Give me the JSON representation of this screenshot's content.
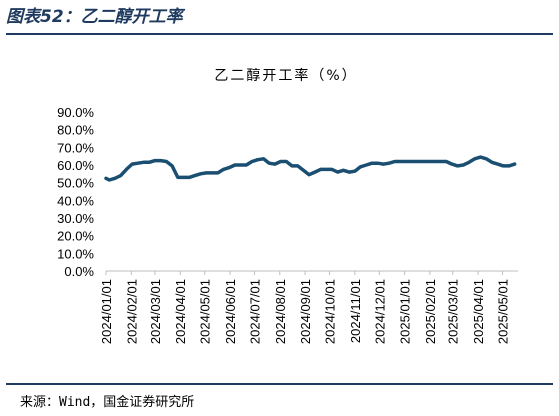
{
  "figure_title": "图表52：乙二醇开工率",
  "source": "来源：Wind，国金证券研究所",
  "colors": {
    "line": "#1b4f72",
    "rule": "#1f3a5f",
    "axis": "#bfbfbf"
  },
  "chart_data": {
    "type": "line",
    "title": "乙二醇开工率（%）",
    "ylim": [
      0,
      90
    ],
    "yticks": [
      "90.0%",
      "80.0%",
      "70.0%",
      "60.0%",
      "50.0%",
      "40.0%",
      "30.0%",
      "20.0%",
      "10.0%",
      "0.0%"
    ],
    "ytick_values": [
      90,
      80,
      70,
      60,
      50,
      40,
      30,
      20,
      10,
      0
    ],
    "xtick_labels": [
      "2024/01/01",
      "2024/02/01",
      "2024/03/01",
      "2024/04/01",
      "2024/05/01",
      "2024/06/01",
      "2024/07/01",
      "2024/08/01",
      "2024/09/01",
      "2024/10/01",
      "2024/11/01",
      "2024/12/01",
      "2025/01/01",
      "2025/02/01",
      "2025/03/01",
      "2025/04/01",
      "2025/05/01"
    ],
    "xlim": [
      "2024-01-01",
      "2025-05-20"
    ],
    "grid": false,
    "series": [
      {
        "x": [
          "2024-01-01",
          "2024-01-05",
          "2024-01-12",
          "2024-01-19",
          "2024-01-26",
          "2024-02-02",
          "2024-02-09",
          "2024-02-16",
          "2024-02-23",
          "2024-03-01",
          "2024-03-08",
          "2024-03-15",
          "2024-03-22",
          "2024-03-29",
          "2024-04-05",
          "2024-04-12",
          "2024-04-19",
          "2024-04-26",
          "2024-05-03",
          "2024-05-10",
          "2024-05-17",
          "2024-05-24",
          "2024-05-31",
          "2024-06-07",
          "2024-06-14",
          "2024-06-21",
          "2024-06-28",
          "2024-07-05",
          "2024-07-12",
          "2024-07-19",
          "2024-07-26",
          "2024-08-02",
          "2024-08-09",
          "2024-08-16",
          "2024-08-23",
          "2024-08-30",
          "2024-09-06",
          "2024-09-13",
          "2024-09-20",
          "2024-09-27",
          "2024-10-04",
          "2024-10-11",
          "2024-10-18",
          "2024-10-25",
          "2024-11-01",
          "2024-11-08",
          "2024-11-15",
          "2024-11-22",
          "2024-11-29",
          "2024-12-06",
          "2024-12-13",
          "2024-12-20",
          "2024-12-27",
          "2025-01-03",
          "2025-01-10",
          "2025-01-17",
          "2025-01-24",
          "2025-01-31",
          "2025-02-07",
          "2025-02-14",
          "2025-02-21",
          "2025-02-28",
          "2025-03-07",
          "2025-03-14",
          "2025-03-21",
          "2025-03-28",
          "2025-04-04",
          "2025-04-11",
          "2025-04-18",
          "2025-04-25",
          "2025-05-02",
          "2025-05-09",
          "2025-05-16"
        ],
        "values": [
          52.5,
          51.5,
          52.5,
          54.0,
          57.5,
          60.5,
          61.0,
          61.5,
          61.5,
          62.5,
          62.5,
          62.0,
          59.5,
          53.0,
          53.0,
          53.0,
          54.0,
          55.0,
          55.5,
          55.5,
          55.5,
          57.5,
          58.5,
          60.0,
          60.0,
          60.0,
          62.0,
          63.0,
          63.5,
          61.0,
          60.5,
          62.0,
          62.0,
          59.5,
          59.5,
          57.0,
          54.5,
          56.0,
          57.5,
          57.5,
          57.5,
          56.0,
          57.0,
          56.0,
          56.5,
          59.0,
          60.0,
          61.0,
          61.0,
          60.5,
          61.0,
          62.0,
          62.0,
          62.0,
          62.0,
          62.0,
          62.0,
          62.0,
          62.0,
          62.0,
          62.0,
          60.5,
          59.5,
          60.0,
          61.5,
          63.5,
          64.5,
          63.5,
          61.5,
          60.5,
          59.5,
          59.5,
          60.5
        ]
      }
    ]
  }
}
